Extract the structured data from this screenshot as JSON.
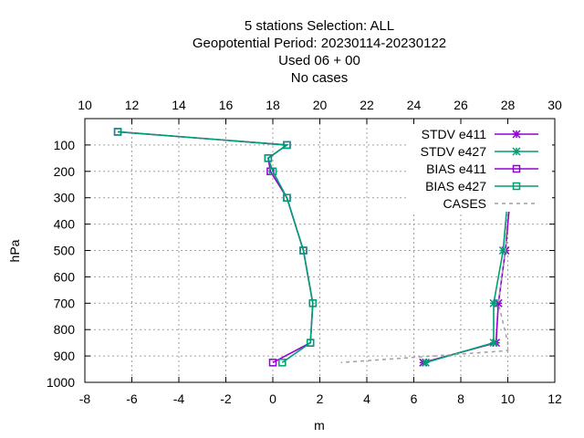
{
  "title_lines": [
    "5 stations Selection: ALL",
    "Geopotential  Period: 20230114-20230122",
    "Used  06  + 00",
    "No cases"
  ],
  "colors": {
    "stdv_e411": "#9400d3",
    "stdv_e427": "#009e73",
    "bias_e411": "#9400d3",
    "bias_e427": "#009e73",
    "cases": "#a0a0a0",
    "grid": "#a0a0a0"
  },
  "chart_data": {
    "type": "line",
    "xlabel": "m",
    "ylabel": "hPa",
    "x_bottom": {
      "lim": [
        -8,
        12
      ],
      "ticks": [
        -8,
        -6,
        -4,
        -2,
        0,
        2,
        4,
        6,
        8,
        10,
        12
      ]
    },
    "x_top": {
      "lim": [
        10,
        30
      ],
      "ticks": [
        10,
        12,
        14,
        16,
        18,
        20,
        22,
        24,
        26,
        28,
        30
      ]
    },
    "y": {
      "lim": [
        1000,
        0
      ],
      "ticks": [
        100,
        200,
        300,
        400,
        500,
        600,
        700,
        800,
        900,
        1000
      ]
    },
    "grid": true,
    "legend_position": "top-right",
    "series": [
      {
        "name": "STDV e411",
        "marker": "star",
        "axis": "bottom",
        "points": [
          [
            8.9,
            50
          ],
          [
            8.8,
            100
          ],
          [
            9.0,
            150
          ],
          [
            9.6,
            200
          ],
          [
            10.1,
            300
          ],
          [
            9.9,
            500
          ],
          [
            9.6,
            700
          ],
          [
            9.5,
            850
          ],
          [
            6.4,
            925
          ]
        ]
      },
      {
        "name": "STDV e427",
        "marker": "star",
        "axis": "bottom",
        "points": [
          [
            8.8,
            50
          ],
          [
            8.6,
            100
          ],
          [
            8.9,
            150
          ],
          [
            9.5,
            200
          ],
          [
            10.0,
            300
          ],
          [
            9.8,
            500
          ],
          [
            9.4,
            700
          ],
          [
            9.4,
            850
          ],
          [
            6.5,
            925
          ]
        ]
      },
      {
        "name": "BIAS e411",
        "marker": "square",
        "axis": "bottom",
        "points": [
          [
            -6.6,
            50
          ],
          [
            0.6,
            100
          ],
          [
            -0.2,
            150
          ],
          [
            -0.1,
            200
          ],
          [
            0.6,
            300
          ],
          [
            1.3,
            500
          ],
          [
            1.7,
            700
          ],
          [
            1.6,
            850
          ],
          [
            0.0,
            925
          ]
        ]
      },
      {
        "name": "BIAS e427",
        "marker": "square",
        "axis": "bottom",
        "points": [
          [
            -6.6,
            50
          ],
          [
            0.6,
            100
          ],
          [
            -0.2,
            150
          ],
          [
            0.0,
            200
          ],
          [
            0.6,
            300
          ],
          [
            1.3,
            500
          ],
          [
            1.7,
            700
          ],
          [
            1.6,
            850
          ],
          [
            0.4,
            925
          ]
        ]
      },
      {
        "name": "CASES",
        "marker": "none",
        "axis": "top",
        "dashed": true,
        "points": [
          [
            26.5,
            50
          ],
          [
            27.4,
            100
          ],
          [
            27.0,
            150
          ],
          [
            27.6,
            200
          ],
          [
            28.0,
            300
          ],
          [
            27.9,
            500
          ],
          [
            27.6,
            700
          ],
          [
            28.0,
            850
          ],
          [
            28.0,
            880
          ],
          [
            20.9,
            925
          ]
        ]
      }
    ]
  }
}
